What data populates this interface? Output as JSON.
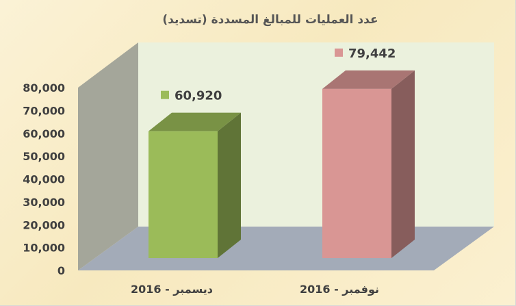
{
  "chart_data": {
    "type": "bar",
    "title": "عدد العمليات للمبالغ المسددة (تسديد)",
    "categories": [
      "ديسمبر - 2016",
      "نوفمبر - 2016"
    ],
    "values": [
      60920,
      79442
    ],
    "value_labels": [
      "60,920",
      "79,442"
    ],
    "colors": [
      "#9bbb59",
      "#d99694"
    ],
    "ylim": [
      0,
      80000
    ],
    "yticks": [
      0,
      10000,
      20000,
      30000,
      40000,
      50000,
      60000,
      70000,
      80000
    ],
    "ytick_labels": [
      "0",
      "10,000",
      "20,000",
      "30,000",
      "40,000",
      "50,000",
      "60,000",
      "70,000",
      "80,000"
    ],
    "xlabel": "",
    "ylabel": "",
    "grid": false,
    "legend": "none",
    "style": "3d-column"
  }
}
